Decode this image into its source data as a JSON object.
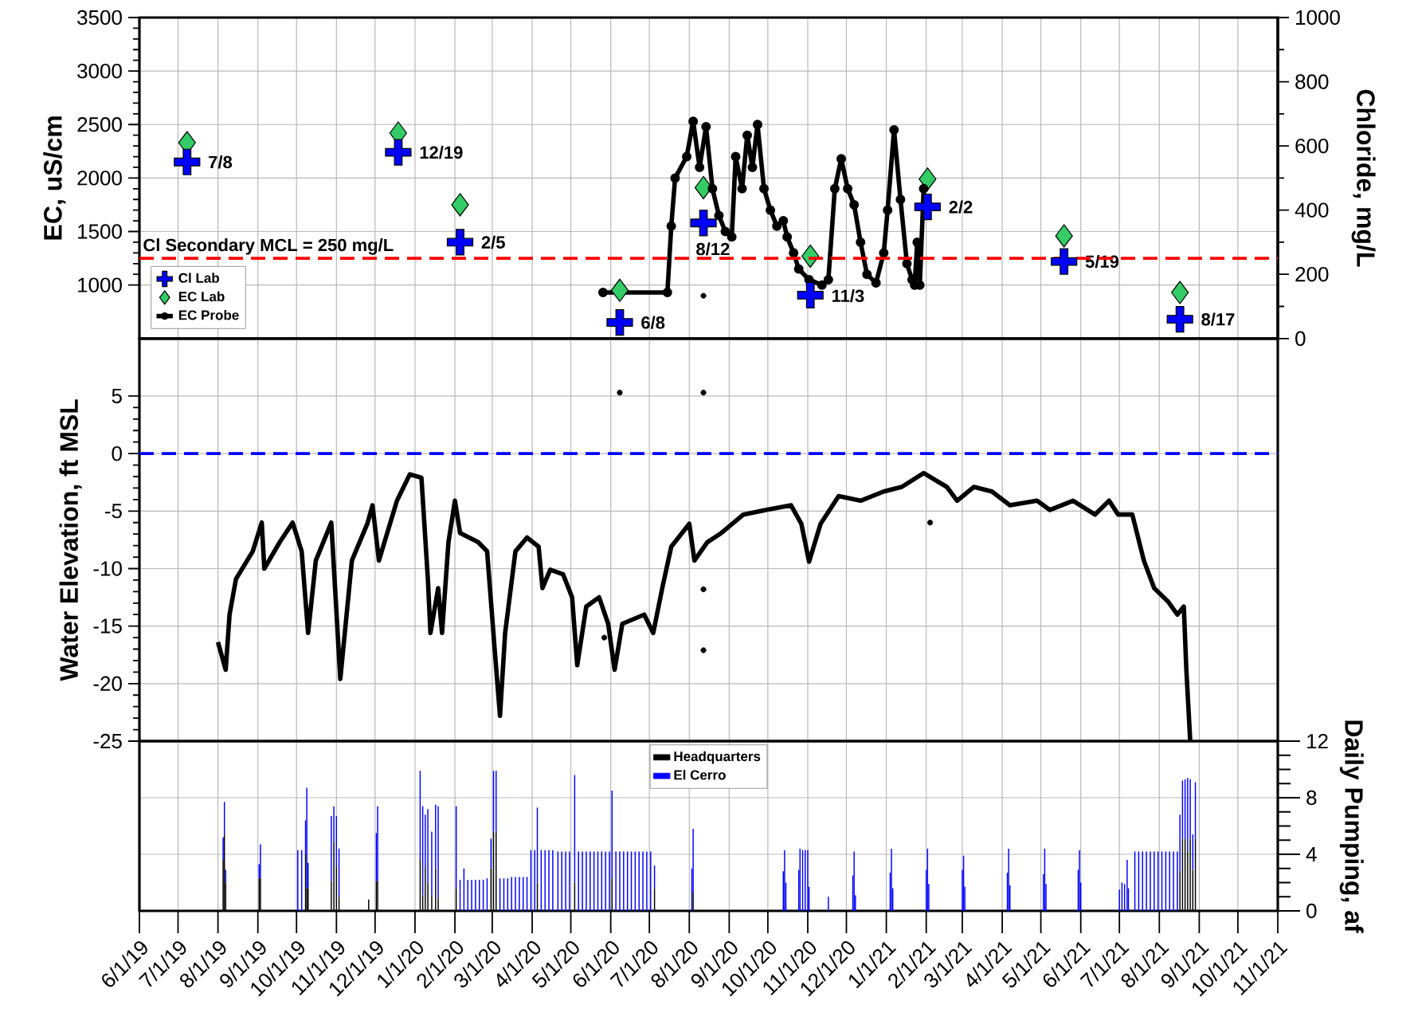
{
  "chart_data": [
    {
      "type": "scatter",
      "ylabel": "EC, uS/cm",
      "y2label": "Chloride, mg/L",
      "xlim": [
        "2019-06-01",
        "2021-11-01"
      ],
      "xticks": [
        {
          "value": "2019-06-01",
          "label": null
        },
        {
          "value": "2019-07-01",
          "label": null
        },
        {
          "value": "2019-08-01",
          "label": null
        },
        {
          "value": "2019-09-01",
          "label": null
        },
        {
          "value": "2019-10-01",
          "label": null
        },
        {
          "value": "2019-11-01",
          "label": null
        },
        {
          "value": "2019-12-01",
          "label": null
        },
        {
          "value": "2020-01-01",
          "label": null
        },
        {
          "value": "2020-02-01",
          "label": null
        },
        {
          "value": "2020-03-01",
          "label": null
        },
        {
          "value": "2020-04-01",
          "label": null
        },
        {
          "value": "2020-05-01",
          "label": null
        },
        {
          "value": "2020-06-01",
          "label": null
        },
        {
          "value": "2020-07-01",
          "label": null
        },
        {
          "value": "2020-08-01",
          "label": null
        },
        {
          "value": "2020-09-01",
          "label": null
        },
        {
          "value": "2020-10-01",
          "label": null
        },
        {
          "value": "2020-11-01",
          "label": null
        },
        {
          "value": "2020-12-01",
          "label": null
        },
        {
          "value": "2021-01-01",
          "label": null
        },
        {
          "value": "2021-02-01",
          "label": null
        },
        {
          "value": "2021-03-01",
          "label": null
        },
        {
          "value": "2021-04-01",
          "label": null
        },
        {
          "value": "2021-05-01",
          "label": null
        },
        {
          "value": "2021-06-01",
          "label": null
        },
        {
          "value": "2021-07-01",
          "label": null
        },
        {
          "value": "2021-08-01",
          "label": null
        },
        {
          "value": "2021-09-01",
          "label": null
        },
        {
          "value": "2021-10-01",
          "label": null
        },
        {
          "value": "2021-11-01",
          "label": null
        }
      ],
      "ylim": [
        500,
        3500
      ],
      "yticks": [
        1000,
        1500,
        2000,
        2500,
        3000,
        3500
      ],
      "y2lim": [
        0,
        1000
      ],
      "y2ticks": [
        0,
        200,
        400,
        600,
        800,
        1000
      ],
      "grid": true,
      "legend": "bottom left",
      "tick_labels": "y",
      "ref_lines": [
        {
          "axis": "y2",
          "value": 250,
          "label": "Cl Secondary MCL = 250 mg/L",
          "color": "#ff0000",
          "line_style": "dashed"
        }
      ],
      "annotations": [
        {
          "text": "7/8",
          "x": "2019-07-08",
          "y": 2150
        },
        {
          "text": "12/19",
          "x": "2019-12-19",
          "y": 2240
        },
        {
          "text": "2/5",
          "x": "2020-02-05",
          "y": 1400
        },
        {
          "text": "6/8",
          "x": "2020-06-08",
          "y": 650
        },
        {
          "text": "8/12",
          "x": "2020-08-12",
          "y": 1580
        },
        {
          "text": "11/3",
          "x": "2020-11-03",
          "y": 900
        },
        {
          "text": "2/2",
          "x": "2021-02-02",
          "y": 1730
        },
        {
          "text": "5/19",
          "x": "2021-05-19",
          "y": 1220
        },
        {
          "text": "8/17",
          "x": "2021-08-17",
          "y": 680
        }
      ],
      "series": [
        {
          "name": "Cl Lab",
          "type": "scatter",
          "axis": "y2",
          "marker": "cross",
          "color": "#0000ff",
          "x": [
            "2019-07-08",
            "2019-12-19",
            "2020-02-05",
            "2020-06-08",
            "2020-08-12",
            "2020-11-03",
            "2021-02-02",
            "2021-05-19",
            "2021-08-17"
          ],
          "values": [
            550,
            580,
            300,
            50,
            360,
            135,
            410,
            240,
            60
          ]
        },
        {
          "name": "EC Lab",
          "type": "scatter",
          "marker": "diamond",
          "color": "#33cc66",
          "x": [
            "2019-07-08",
            "2019-12-19",
            "2020-02-05",
            "2020-06-08",
            "2020-08-12",
            "2020-11-03",
            "2021-02-02",
            "2021-05-19",
            "2021-08-17"
          ],
          "values": [
            2330,
            2420,
            1750,
            950,
            1910,
            1270,
            1990,
            1460,
            930
          ]
        },
        {
          "name": "EC Probe",
          "type": "line",
          "marker": "circle",
          "color": "#000000",
          "x": [
            "2020-05-26",
            "2020-07-15",
            "2020-07-18",
            "2020-07-21",
            "2020-07-30",
            "2020-08-04",
            "2020-08-09",
            "2020-08-14",
            "2020-08-19",
            "2020-08-24",
            "2020-08-29",
            "2020-09-03",
            "2020-09-06",
            "2020-09-11",
            "2020-09-15",
            "2020-09-19",
            "2020-09-23",
            "2020-09-28",
            "2020-10-03",
            "2020-10-08",
            "2020-10-13",
            "2020-10-16",
            "2020-10-21",
            "2020-10-25",
            "2020-11-02",
            "2020-11-12",
            "2020-11-17",
            "2020-11-22",
            "2020-11-27",
            "2020-12-02",
            "2020-12-07",
            "2020-12-12",
            "2020-12-17",
            "2020-12-24",
            "2020-12-30",
            "2021-01-02",
            "2021-01-07",
            "2021-01-12",
            "2021-01-17",
            "2021-01-21",
            "2021-01-23",
            "2021-01-25",
            "2021-01-27",
            "2021-01-30"
          ],
          "values": [
            930,
            930,
            1550,
            2000,
            2200,
            2530,
            2100,
            2480,
            1900,
            1650,
            1500,
            1450,
            2200,
            1900,
            2400,
            2100,
            2500,
            1900,
            1700,
            1550,
            1600,
            1450,
            1300,
            1150,
            1050,
            1000,
            1050,
            1900,
            2180,
            1900,
            1750,
            1400,
            1100,
            1020,
            1300,
            1700,
            2450,
            1800,
            1200,
            1050,
            1000,
            1400,
            1000,
            1900
          ]
        },
        {
          "type": "scatter",
          "marker": "circle",
          "color": "#000000",
          "x": [
            "2020-08-12"
          ],
          "values": [
            900
          ]
        }
      ]
    },
    {
      "type": "line",
      "ylabel": "Water Elevation, ft MSL",
      "xlim": [
        "2019-06-01",
        "2021-11-01"
      ],
      "xticks": [
        {
          "value": "2019-06-01",
          "label": null
        },
        {
          "value": "2019-07-01",
          "label": null
        },
        {
          "value": "2019-08-01",
          "label": null
        },
        {
          "value": "2019-09-01",
          "label": null
        },
        {
          "value": "2019-10-01",
          "label": null
        },
        {
          "value": "2019-11-01",
          "label": null
        },
        {
          "value": "2019-12-01",
          "label": null
        },
        {
          "value": "2020-01-01",
          "label": null
        },
        {
          "value": "2020-02-01",
          "label": null
        },
        {
          "value": "2020-03-01",
          "label": null
        },
        {
          "value": "2020-04-01",
          "label": null
        },
        {
          "value": "2020-05-01",
          "label": null
        },
        {
          "value": "2020-06-01",
          "label": null
        },
        {
          "value": "2020-07-01",
          "label": null
        },
        {
          "value": "2020-08-01",
          "label": null
        },
        {
          "value": "2020-09-01",
          "label": null
        },
        {
          "value": "2020-10-01",
          "label": null
        },
        {
          "value": "2020-11-01",
          "label": null
        },
        {
          "value": "2020-12-01",
          "label": null
        },
        {
          "value": "2021-01-01",
          "label": null
        },
        {
          "value": "2021-02-01",
          "label": null
        },
        {
          "value": "2021-03-01",
          "label": null
        },
        {
          "value": "2021-04-01",
          "label": null
        },
        {
          "value": "2021-05-01",
          "label": null
        },
        {
          "value": "2021-06-01",
          "label": null
        },
        {
          "value": "2021-07-01",
          "label": null
        },
        {
          "value": "2021-08-01",
          "label": null
        },
        {
          "value": "2021-09-01",
          "label": null
        },
        {
          "value": "2021-10-01",
          "label": null
        },
        {
          "value": "2021-11-01",
          "label": null
        }
      ],
      "ylim": [
        -25,
        10
      ],
      "yticks": [
        -25,
        -20,
        -15,
        -10,
        -5,
        0,
        5
      ],
      "grid": true,
      "tick_labels": "y",
      "ref_lines": [
        {
          "axis": "y",
          "value": 0,
          "color": "#0000ff",
          "line_style": "dashed"
        }
      ],
      "series": [
        {
          "color": "#000000",
          "x": [
            "2019-08-01",
            "2019-08-07",
            "2019-08-10",
            "2019-08-15",
            "2019-08-28",
            "2019-09-04",
            "2019-09-06",
            "2019-09-18",
            "2019-09-28",
            "2019-10-05",
            "2019-10-10",
            "2019-10-16",
            "2019-10-28",
            "2019-11-04",
            "2019-11-13",
            "2019-11-25",
            "2019-11-29",
            "2019-12-04",
            "2019-12-18",
            "2019-12-28",
            "2020-01-06",
            "2020-01-11",
            "2020-01-13",
            "2020-01-19",
            "2020-01-22",
            "2020-01-27",
            "2020-02-01",
            "2020-02-05",
            "2020-02-19",
            "2020-02-26",
            "2020-03-03",
            "2020-03-07",
            "2020-03-11",
            "2020-03-19",
            "2020-03-28",
            "2020-04-06",
            "2020-04-09",
            "2020-04-15",
            "2020-04-25",
            "2020-05-02",
            "2020-05-06",
            "2020-05-13",
            "2020-05-23",
            "2020-05-30",
            "2020-06-04",
            "2020-06-10",
            "2020-06-27",
            "2020-07-04",
            "2020-07-11",
            "2020-07-18",
            "2020-08-01",
            "2020-08-05",
            "2020-08-15",
            "2020-08-26",
            "2020-09-12",
            "2020-09-30",
            "2020-10-19",
            "2020-10-27",
            "2020-11-02",
            "2020-11-11",
            "2020-11-25",
            "2020-12-12",
            "2020-12-30",
            "2021-01-13",
            "2021-01-30",
            "2021-02-17",
            "2021-02-25",
            "2021-03-10",
            "2021-03-24",
            "2021-04-07",
            "2021-04-28",
            "2021-05-08",
            "2021-05-26",
            "2021-06-12",
            "2021-06-23",
            "2021-06-30",
            "2021-07-11",
            "2021-07-20",
            "2021-07-28",
            "2021-08-08",
            "2021-08-15",
            "2021-08-20",
            "2021-08-22",
            "2021-08-25"
          ],
          "values": [
            -16.4,
            -18.8,
            -14,
            -10.9,
            -8.5,
            -6,
            -10,
            -7.7,
            -6,
            -8.5,
            -15.6,
            -9.3,
            -6,
            -19.6,
            -9.3,
            -6.1,
            -4.5,
            -9.3,
            -4.1,
            -1.8,
            -2.1,
            -10.9,
            -15.6,
            -11.7,
            -15.6,
            -7.7,
            -4.1,
            -6.9,
            -7.7,
            -8.5,
            -17.2,
            -22.8,
            -15.6,
            -8.5,
            -7.3,
            -8.1,
            -11.7,
            -10.1,
            -10.5,
            -12.5,
            -18.4,
            -13.3,
            -12.5,
            -14.8,
            -18.8,
            -14.8,
            -14,
            -15.6,
            -11.7,
            -8.1,
            -6.1,
            -9.3,
            -7.7,
            -6.9,
            -5.3,
            -4.9,
            -4.5,
            -6.1,
            -9.4,
            -6.1,
            -3.7,
            -4.1,
            -3.3,
            -2.9,
            -1.7,
            -2.9,
            -4.1,
            -2.9,
            -3.3,
            -4.5,
            -4.1,
            -4.9,
            -4.1,
            -5.3,
            -4.1,
            -5.3,
            -5.3,
            -9.3,
            -11.7,
            -12.9,
            -14,
            -13.3,
            -18.8,
            -25
          ]
        },
        {
          "type": "scatter",
          "marker": "circle",
          "color": "#000000",
          "x": [
            "2020-05-27",
            "2020-06-08",
            "2020-08-12",
            "2020-08-12",
            "2020-08-12",
            "2021-02-04"
          ],
          "values": [
            -16,
            5.3,
            5.3,
            -11.8,
            -17.1,
            -6
          ]
        }
      ]
    },
    {
      "type": "bar",
      "stacked": true,
      "y2label": "Daily Pumping, af",
      "xlim": [
        "2019-06-01",
        "2021-11-01"
      ],
      "xticks": [
        {
          "value": "2019-06-01",
          "label": "6/1/19"
        },
        {
          "value": "2019-07-01",
          "label": "7/1/19"
        },
        {
          "value": "2019-08-01",
          "label": "8/1/19"
        },
        {
          "value": "2019-09-01",
          "label": "9/1/19"
        },
        {
          "value": "2019-10-01",
          "label": "10/1/19"
        },
        {
          "value": "2019-11-01",
          "label": "11/1/19"
        },
        {
          "value": "2019-12-01",
          "label": "12/1/19"
        },
        {
          "value": "2020-01-01",
          "label": "1/1/20"
        },
        {
          "value": "2020-02-01",
          "label": "2/1/20"
        },
        {
          "value": "2020-03-01",
          "label": "3/1/20"
        },
        {
          "value": "2020-04-01",
          "label": "4/1/20"
        },
        {
          "value": "2020-05-01",
          "label": "5/1/20"
        },
        {
          "value": "2020-06-01",
          "label": "6/1/20"
        },
        {
          "value": "2020-07-01",
          "label": "7/1/20"
        },
        {
          "value": "2020-08-01",
          "label": "8/1/20"
        },
        {
          "value": "2020-09-01",
          "label": "9/1/20"
        },
        {
          "value": "2020-10-01",
          "label": "10/1/20"
        },
        {
          "value": "2020-11-01",
          "label": "11/1/20"
        },
        {
          "value": "2020-12-01",
          "label": "12/1/20"
        },
        {
          "value": "2021-01-01",
          "label": "1/1/21"
        },
        {
          "value": "2021-02-01",
          "label": "2/1/21"
        },
        {
          "value": "2021-03-01",
          "label": "3/1/21"
        },
        {
          "value": "2021-04-01",
          "label": "4/1/21"
        },
        {
          "value": "2021-05-01",
          "label": "5/1/21"
        },
        {
          "value": "2021-06-01",
          "label": "6/1/21"
        },
        {
          "value": "2021-07-01",
          "label": "7/1/21"
        },
        {
          "value": "2021-08-01",
          "label": "8/1/21"
        },
        {
          "value": "2021-09-01",
          "label": "9/1/21"
        },
        {
          "value": "2021-10-01",
          "label": "10/1/21"
        },
        {
          "value": "2021-11-01",
          "label": "11/1/21"
        }
      ],
      "y2lim": [
        0,
        12
      ],
      "y2ticks": [
        0,
        4,
        8,
        12
      ],
      "grid": true,
      "legend": "top",
      "x": [
        "2019-08-05",
        "2019-08-06",
        "2019-08-07",
        "2019-09-02",
        "2019-09-03",
        "2019-10-02",
        "2019-10-05",
        "2019-10-08",
        "2019-10-09",
        "2019-10-10",
        "2019-10-28",
        "2019-10-30",
        "2019-11-01",
        "2019-11-03",
        "2019-11-26",
        "2019-12-02",
        "2019-12-03",
        "2020-01-05",
        "2020-01-07",
        "2020-01-09",
        "2020-01-11",
        "2020-01-14",
        "2020-01-17",
        "2020-01-19",
        "2020-02-02",
        "2020-02-05",
        "2020-02-08",
        "2020-02-11",
        "2020-02-14",
        "2020-02-17",
        "2020-02-20",
        "2020-02-23",
        "2020-02-26",
        "2020-02-29",
        "2020-03-02",
        "2020-03-04",
        "2020-03-07",
        "2020-03-10",
        "2020-03-13",
        "2020-03-16",
        "2020-03-19",
        "2020-03-22",
        "2020-03-25",
        "2020-03-28",
        "2020-03-31",
        "2020-04-03",
        "2020-04-05",
        "2020-04-08",
        "2020-04-11",
        "2020-04-14",
        "2020-04-17",
        "2020-04-21",
        "2020-04-24",
        "2020-04-27",
        "2020-04-30",
        "2020-05-04",
        "2020-05-07",
        "2020-05-10",
        "2020-05-13",
        "2020-05-16",
        "2020-05-19",
        "2020-05-22",
        "2020-05-25",
        "2020-05-28",
        "2020-05-31",
        "2020-06-02",
        "2020-06-05",
        "2020-06-08",
        "2020-06-11",
        "2020-06-14",
        "2020-06-17",
        "2020-06-20",
        "2020-06-23",
        "2020-06-26",
        "2020-06-29",
        "2020-07-02",
        "2020-07-05",
        "2020-08-03",
        "2020-08-04",
        "2020-10-13",
        "2020-10-14",
        "2020-10-15",
        "2020-10-25",
        "2020-10-26",
        "2020-10-28",
        "2020-10-30",
        "2020-11-01",
        "2020-11-02",
        "2020-11-17",
        "2020-12-06",
        "2020-12-07",
        "2020-12-08",
        "2021-01-04",
        "2021-01-05",
        "2021-01-06",
        "2021-02-01",
        "2021-02-02",
        "2021-02-03",
        "2021-03-01",
        "2021-03-02",
        "2021-03-03",
        "2021-04-05",
        "2021-04-06",
        "2021-04-07",
        "2021-05-03",
        "2021-05-04",
        "2021-05-05",
        "2021-05-30",
        "2021-05-31",
        "2021-06-01",
        "2021-07-01",
        "2021-07-03",
        "2021-07-05",
        "2021-07-07",
        "2021-07-08",
        "2021-07-13",
        "2021-07-16",
        "2021-07-19",
        "2021-07-22",
        "2021-07-25",
        "2021-07-28",
        "2021-07-31",
        "2021-08-03",
        "2021-08-06",
        "2021-08-09",
        "2021-08-12",
        "2021-08-15",
        "2021-08-17",
        "2021-08-19",
        "2021-08-21",
        "2021-08-23",
        "2021-08-25",
        "2021-08-27",
        "2021-08-29"
      ],
      "series": [
        {
          "name": "Headquarters",
          "color": "#000000",
          "axis": "y2",
          "values": [
            3.6,
            5.4,
            2.0,
            2.3,
            2.3,
            0,
            0,
            4.0,
            1.6,
            1.6,
            2.1,
            4.9,
            3.1,
            1.0,
            0.8,
            2.1,
            2.1,
            3.6,
            1.1,
            3.1,
            2.0,
            1.1,
            3.0,
            0.9,
            1.6,
            0,
            0,
            0,
            0,
            0,
            0,
            0,
            0,
            3.0,
            5.6,
            5.6,
            0,
            0,
            0,
            0,
            0,
            0,
            0,
            0,
            0,
            0,
            2.0,
            0,
            0,
            0,
            0,
            0,
            0,
            0,
            0,
            2.0,
            0,
            0,
            0,
            0,
            0,
            0,
            0,
            0,
            0,
            2.3,
            0,
            0,
            0,
            0,
            0,
            0,
            0,
            0,
            0,
            0,
            1.6,
            0,
            1.3,
            0,
            0,
            0,
            0,
            0,
            0,
            0,
            0,
            0,
            0,
            0,
            0,
            0,
            0,
            0,
            0,
            0,
            0,
            0,
            0,
            0,
            0,
            0,
            0,
            0,
            0,
            0,
            0,
            0,
            0,
            0,
            0,
            0,
            0,
            0,
            0,
            0,
            0,
            0,
            0,
            0,
            0,
            0,
            0,
            0,
            0,
            0,
            0,
            2.8,
            5.1,
            5.1,
            4.2,
            5.1,
            2.9,
            5.1
          ]
        },
        {
          "name": "El Cerro",
          "color": "#0000ff",
          "axis": "y2",
          "values": [
            1.6,
            2.3,
            0.9,
            1.0,
            2.4,
            4.3,
            4.3,
            2.4,
            7.1,
            1.8,
            4.6,
            2.5,
            3.6,
            3.4,
            0,
            3.4,
            5.3,
            6.3,
            6.3,
            3.7,
            5.2,
            4.5,
            4.5,
            6.5,
            5.8,
            2.2,
            3.0,
            2.2,
            2.2,
            2.2,
            2.2,
            2.2,
            2.3,
            2.1,
            4.3,
            4.3,
            2.3,
            2.3,
            2.3,
            2.4,
            2.4,
            2.4,
            2.4,
            2.4,
            4.3,
            4.3,
            5.3,
            4.3,
            4.3,
            4.3,
            4.3,
            4.2,
            4.2,
            4.2,
            4.2,
            7.6,
            4.2,
            4.2,
            4.2,
            4.2,
            4.2,
            4.2,
            4.2,
            4.2,
            4.2,
            6.2,
            4.2,
            4.2,
            4.2,
            4.2,
            4.2,
            4.2,
            4.2,
            4.2,
            4.2,
            4.2,
            1.6,
            3.0,
            4.5,
            2.8,
            4.3,
            2.0,
            2.9,
            4.4,
            4.3,
            4.3,
            4.3,
            1.7,
            1.0,
            2.5,
            4.2,
            1.1,
            2.7,
            4.4,
            1.6,
            2.9,
            4.4,
            1.9,
            2.9,
            3.9,
            1.7,
            2.7,
            4.4,
            1.8,
            2.6,
            4.4,
            1.9,
            2.9,
            4.3,
            2.0,
            1.5,
            2.0,
            1.9,
            3.6,
            1.6,
            4.2,
            4.2,
            4.2,
            4.2,
            4.2,
            4.2,
            4.2,
            4.2,
            4.2,
            4.2,
            4.2,
            4.2,
            4.0,
            4.1,
            4.2,
            5.2,
            4.2,
            2.5,
            4.0
          ]
        }
      ]
    }
  ]
}
